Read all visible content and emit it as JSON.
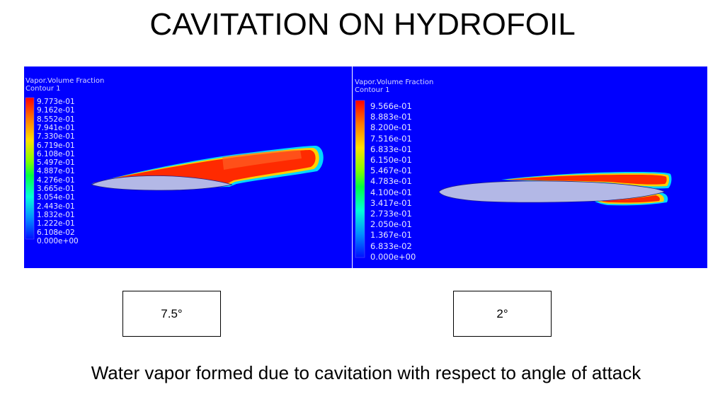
{
  "slide": {
    "title": "CAVITATION ON HYDROFOIL",
    "caption": "Water vapor formed due to cavitation with respect to angle of attack"
  },
  "panels": [
    {
      "legend_title": "Vapor.Volume Fraction",
      "legend_subtitle": "Contour 1",
      "legend_values": [
        "9.773e-01",
        "9.162e-01",
        "8.552e-01",
        "7.941e-01",
        "7.330e-01",
        "6.719e-01",
        "6.108e-01",
        "5.497e-01",
        "4.887e-01",
        "4.276e-01",
        "3.665e-01",
        "3.054e-01",
        "2.443e-01",
        "1.832e-01",
        "1.222e-01",
        "6.108e-02",
        "0.000e+00"
      ],
      "angle_label": "7.5°"
    },
    {
      "legend_title": "Vapor.Volume Fraction",
      "legend_subtitle": "Contour 1",
      "legend_values": [
        "9.566e-01",
        "8.883e-01",
        "8.200e-01",
        "7.516e-01",
        "6.833e-01",
        "6.150e-01",
        "5.467e-01",
        "4.783e-01",
        "4.100e-01",
        "3.417e-01",
        "2.733e-01",
        "2.050e-01",
        "1.367e-01",
        "6.833e-02",
        "0.000e+00"
      ],
      "angle_label": "2°"
    }
  ],
  "colors": {
    "background_field": "#0000ff",
    "foil": "#b3b8e6",
    "vapor_high": "#ff2a00",
    "vapor_mid": "#ffd400",
    "vapor_low": "#00e0ff"
  }
}
